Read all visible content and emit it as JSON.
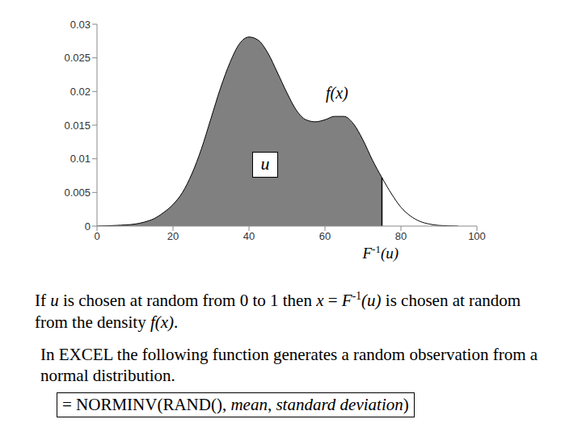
{
  "chart_data": {
    "type": "area",
    "x": [
      0,
      5,
      10,
      12.5,
      15,
      17.5,
      20,
      22.5,
      25,
      27.5,
      30,
      32.5,
      35,
      37.5,
      40,
      42.5,
      45,
      47.5,
      50,
      52.5,
      55,
      57.5,
      60,
      62.5,
      65,
      67.5,
      70,
      72.5,
      75,
      77.5,
      80,
      82.5,
      85,
      87.5,
      90,
      95
    ],
    "values": [
      0,
      0.0001,
      0.0003,
      0.0006,
      0.0011,
      0.002,
      0.0032,
      0.005,
      0.0078,
      0.0115,
      0.016,
      0.0205,
      0.0243,
      0.0271,
      0.0281,
      0.0276,
      0.0257,
      0.0228,
      0.0198,
      0.0172,
      0.0158,
      0.0155,
      0.0158,
      0.0163,
      0.0163,
      0.0152,
      0.0128,
      0.0098,
      0.0072,
      0.0048,
      0.0028,
      0.0015,
      0.0007,
      0.0003,
      0.0001,
      0
    ],
    "color": "#808080",
    "xlim": [
      0,
      100
    ],
    "ylim": [
      0,
      0.03
    ],
    "xticks": [
      0,
      20,
      40,
      60,
      80,
      100
    ],
    "yticks": [
      0,
      0.005,
      0.01,
      0.015,
      0.02,
      0.025,
      0.03
    ],
    "quantile_x": 75,
    "curve_label": "f(x)",
    "area_label": "u",
    "quantile_label": [
      {
        "t": "F",
        "i": true
      },
      {
        "t": "-1",
        "sup": true
      },
      {
        "t": "(u)",
        "i": true
      }
    ]
  },
  "caption": [
    {
      "t": "If "
    },
    {
      "t": "u",
      "i": true
    },
    {
      "t": " is chosen at random from 0 to 1 then "
    },
    {
      "t": "x",
      "i": true
    },
    {
      "t": " = "
    },
    {
      "t": "F",
      "i": true
    },
    {
      "t": "-1",
      "sup": true
    },
    {
      "t": "(u)",
      "i": true
    },
    {
      "t": " is chosen at random from the density "
    },
    {
      "t": "f(x)",
      "i": true
    },
    {
      "t": "."
    }
  ],
  "excel_text": "In EXCEL the following function generates a random observation from a normal distribution.",
  "formula": [
    {
      "t": "= NORMINV(RAND(), "
    },
    {
      "t": "mean",
      "i": true
    },
    {
      "t": ", "
    },
    {
      "t": "standard deviation",
      "i": true
    },
    {
      "t": ")"
    }
  ]
}
